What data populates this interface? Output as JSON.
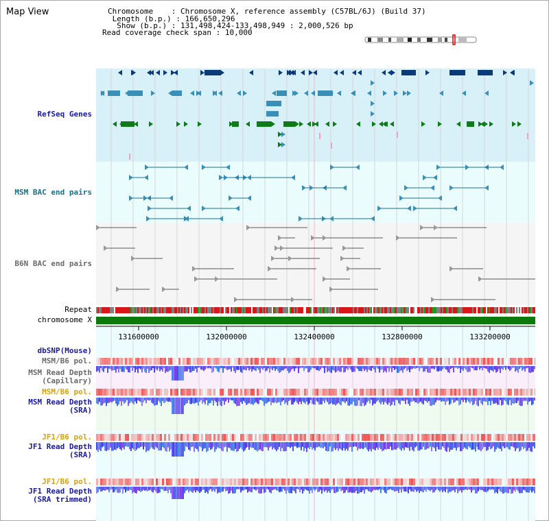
{
  "header": {
    "title": "Map View",
    "chromosome_key": "Chromosome",
    "chromosome_value": "Chromosome X, reference assembly (C57BL/6J) (Build 37)",
    "length_key": "Length (b.p.)",
    "length_value": "166,650,296",
    "show_key": "Show (b.p.)",
    "show_value": "131,498,424-133,498,949 : 2,000,526 bp",
    "coverage_key": "Read coverage check span",
    "coverage_value": "10,000"
  },
  "tracks": {
    "refseq": "RefSeq Genes",
    "msm_bac": "MSM BAC end pairs",
    "b6n_bac": "B6N BAC end pairs",
    "repeat": "Repeat",
    "chromosome": "chromosome X",
    "dbsnp": "dbSNP(Mouse)",
    "msm_b6_pol_1": "MSM/B6 pol.",
    "msm_depth_cap_1": "MSM Read Depth",
    "msm_depth_cap_2": "(Capillary)",
    "msm_b6_pol_2": "MSM/B6 pol.",
    "msm_depth_sra_1": "MSM Read Depth",
    "msm_depth_sra_2": "(SRA)",
    "jf1_b6_pol_1": "JF1/B6 pol.",
    "jf1_depth_sra_1": "JF1 Read Depth",
    "jf1_depth_sra_2": "(SRA)",
    "jf1_b6_pol_2": "JF1/B6 pol.",
    "jf1_depth_trim_1": "JF1 Read Depth",
    "jf1_depth_trim_2": "(SRA trimmed)"
  },
  "axis": {
    "ticks": [
      "131600000",
      "132000000",
      "132400000",
      "132800000",
      "133200000"
    ]
  },
  "colors": {
    "refseq_bg": "#d8f0f8",
    "bac_bg": "#eafcfc",
    "b6n_bg": "#f5f5f5",
    "gene_dark": "#0a3a78",
    "gene_mid": "#3a8fb8",
    "gene_green": "#0f7a1a",
    "chromosome_bar": "#0b7a0b",
    "depth_blue": "#3030e8",
    "pol_red": "#f06060"
  }
}
